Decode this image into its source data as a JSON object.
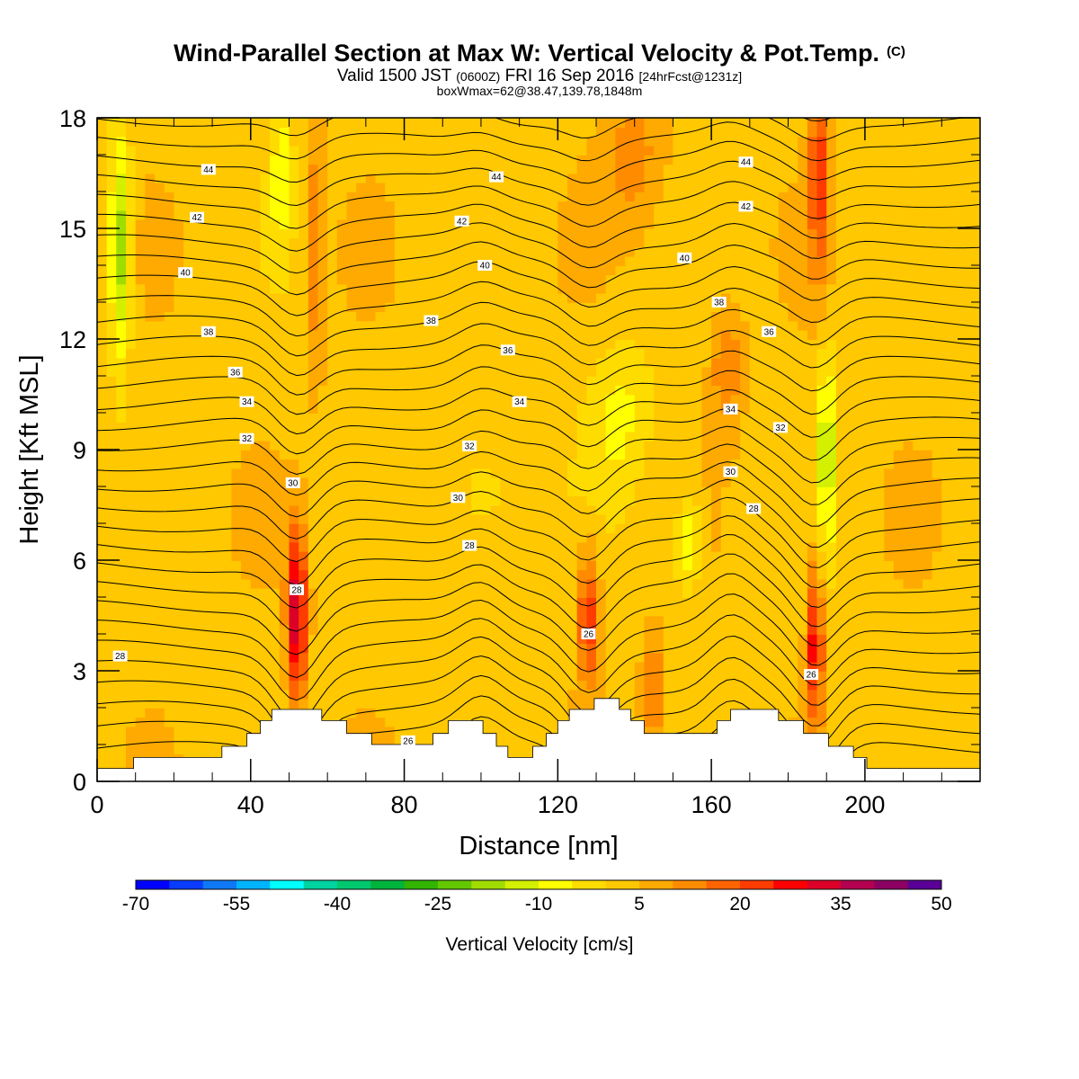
{
  "title": {
    "main": "Wind-Parallel Section at Max W: Vertical Velocity & Pot.Temp.",
    "copyright": "(C)",
    "valid_prefix": "Valid 1500 JST",
    "valid_utc": "(0600Z)",
    "valid_date": "FRI 16 Sep 2016",
    "forecast": "[24hrFcst@1231z]",
    "box": "boxWmax=62@38.47,139.78,1848m"
  },
  "chart_data": {
    "type": "heatmap",
    "xlabel": "Distance [nm]",
    "ylabel": "Height [Kft MSL]",
    "xlim": [
      0,
      230
    ],
    "ylim": [
      0,
      18
    ],
    "x_ticks": [
      0,
      40,
      80,
      120,
      160,
      200
    ],
    "y_ticks": [
      0,
      3,
      6,
      9,
      12,
      15,
      18
    ],
    "colorbar": {
      "title": "Vertical Velocity [cm/s]",
      "tick_labels": [
        "-70",
        "-55",
        "-40",
        "-25",
        "-10",
        "5",
        "20",
        "35",
        "50"
      ],
      "tick_values": [
        -70,
        -55,
        -40,
        -25,
        -10,
        5,
        20,
        35,
        50
      ],
      "colors": [
        "#0000ff",
        "#0a3cff",
        "#0f78f5",
        "#00b4ff",
        "#00ffff",
        "#00d2a0",
        "#00c86e",
        "#00b43c",
        "#32b400",
        "#64c800",
        "#a0dc00",
        "#d2f000",
        "#ffff00",
        "#ffdc00",
        "#ffc800",
        "#ffaa00",
        "#ff8c00",
        "#ff6400",
        "#ff3c00",
        "#ff0000",
        "#dc0028",
        "#b40050",
        "#8c0064",
        "#5a0096"
      ]
    },
    "theta_contour_labels": [
      {
        "x": 6,
        "y": 3.4,
        "label": "28"
      },
      {
        "x": 52,
        "y": 5.2,
        "label": "28"
      },
      {
        "x": 128,
        "y": 4.0,
        "label": "26"
      },
      {
        "x": 186,
        "y": 2.9,
        "label": "26"
      },
      {
        "x": 81,
        "y": 1.1,
        "label": "26"
      },
      {
        "x": 97,
        "y": 6.4,
        "label": "28"
      },
      {
        "x": 171,
        "y": 7.4,
        "label": "28"
      },
      {
        "x": 51,
        "y": 8.1,
        "label": "30"
      },
      {
        "x": 94,
        "y": 7.7,
        "label": "30"
      },
      {
        "x": 165,
        "y": 8.4,
        "label": "30"
      },
      {
        "x": 39,
        "y": 9.3,
        "label": "32"
      },
      {
        "x": 97,
        "y": 9.1,
        "label": "32"
      },
      {
        "x": 178,
        "y": 9.6,
        "label": "32"
      },
      {
        "x": 39,
        "y": 10.3,
        "label": "34"
      },
      {
        "x": 110,
        "y": 10.3,
        "label": "34"
      },
      {
        "x": 165,
        "y": 10.1,
        "label": "34"
      },
      {
        "x": 36,
        "y": 11.1,
        "label": "36"
      },
      {
        "x": 107,
        "y": 11.7,
        "label": "36"
      },
      {
        "x": 175,
        "y": 12.2,
        "label": "36"
      },
      {
        "x": 29,
        "y": 12.2,
        "label": "38"
      },
      {
        "x": 87,
        "y": 12.5,
        "label": "38"
      },
      {
        "x": 162,
        "y": 13.0,
        "label": "38"
      },
      {
        "x": 23,
        "y": 13.8,
        "label": "40"
      },
      {
        "x": 101,
        "y": 14.0,
        "label": "40"
      },
      {
        "x": 153,
        "y": 14.2,
        "label": "40"
      },
      {
        "x": 26,
        "y": 15.3,
        "label": "42"
      },
      {
        "x": 95,
        "y": 15.2,
        "label": "42"
      },
      {
        "x": 169,
        "y": 15.6,
        "label": "42"
      },
      {
        "x": 29,
        "y": 16.6,
        "label": "44"
      },
      {
        "x": 104,
        "y": 16.4,
        "label": "44"
      },
      {
        "x": 169,
        "y": 16.8,
        "label": "44"
      }
    ],
    "terrain_kft": [
      [
        0,
        0.35
      ],
      [
        9.5,
        0.35
      ],
      [
        9.5,
        0.65
      ],
      [
        32.5,
        0.65
      ],
      [
        32.5,
        0.95
      ],
      [
        39,
        0.95
      ],
      [
        39,
        1.3
      ],
      [
        42.5,
        1.3
      ],
      [
        42.5,
        1.65
      ],
      [
        45.5,
        1.65
      ],
      [
        45.5,
        1.95
      ],
      [
        58.5,
        1.95
      ],
      [
        58.5,
        1.65
      ],
      [
        65,
        1.65
      ],
      [
        65,
        1.3
      ],
      [
        71.5,
        1.3
      ],
      [
        71.5,
        1.0
      ],
      [
        87.5,
        1.0
      ],
      [
        87.5,
        1.3
      ],
      [
        91.5,
        1.3
      ],
      [
        91.5,
        1.65
      ],
      [
        100.5,
        1.65
      ],
      [
        100.5,
        1.3
      ],
      [
        104,
        1.3
      ],
      [
        104,
        0.95
      ],
      [
        107,
        0.95
      ],
      [
        107,
        0.65
      ],
      [
        113.5,
        0.65
      ],
      [
        113.5,
        0.95
      ],
      [
        117,
        0.95
      ],
      [
        117,
        1.3
      ],
      [
        120,
        1.3
      ],
      [
        120,
        1.65
      ],
      [
        123,
        1.65
      ],
      [
        123,
        1.95
      ],
      [
        129.5,
        1.95
      ],
      [
        129.5,
        2.25
      ],
      [
        136,
        2.25
      ],
      [
        136,
        1.95
      ],
      [
        139,
        1.95
      ],
      [
        139,
        1.65
      ],
      [
        142.5,
        1.65
      ],
      [
        142.5,
        1.3
      ],
      [
        161.5,
        1.3
      ],
      [
        161.5,
        1.65
      ],
      [
        165,
        1.65
      ],
      [
        165,
        1.95
      ],
      [
        177.5,
        1.95
      ],
      [
        177.5,
        1.65
      ],
      [
        184,
        1.65
      ],
      [
        184,
        1.3
      ],
      [
        190.5,
        1.3
      ],
      [
        190.5,
        0.95
      ],
      [
        197,
        0.95
      ],
      [
        197,
        0.65
      ],
      [
        200.5,
        0.65
      ],
      [
        200.5,
        0.35
      ],
      [
        230,
        0.35
      ]
    ]
  }
}
